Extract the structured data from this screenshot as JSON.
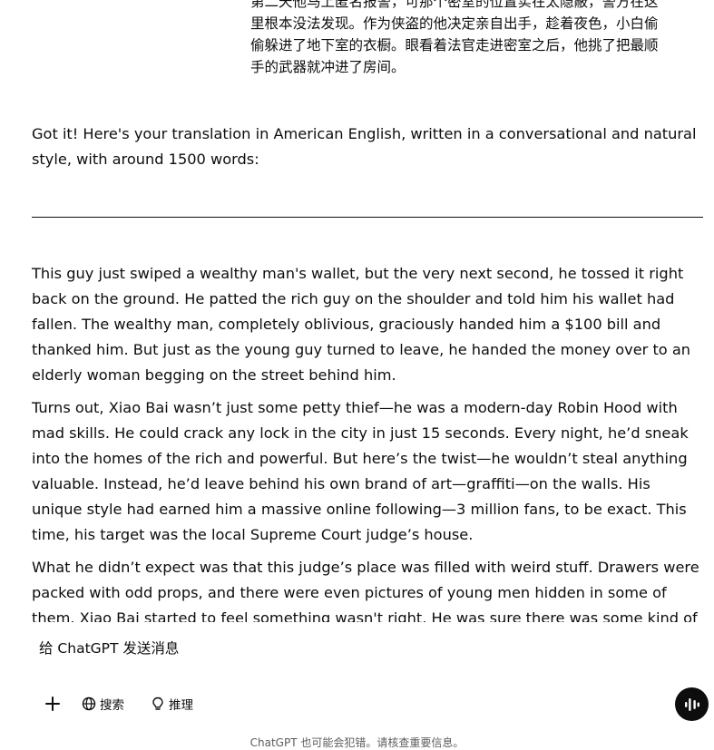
{
  "user_message": {
    "lines": [
      "第二天他马上匿名报警，可那个密室的位置实在太隐蔽，警方在这",
      "里根本没法发现。作为侠盗的他决定亲自出手，趁着夜色，小白偷",
      "偷躲进了地下室的衣橱。眼看着法官走进密室之后，他挑了把最顺",
      "手的武器就冲进了房间。"
    ]
  },
  "assistant_message": {
    "intro": "Got it! Here's your translation in American English, written in a conversational and natural style, with around 1500 words:",
    "paragraphs": [
      "This guy just swiped a wealthy man's wallet, but the very next second, he tossed it right back on the ground. He patted the rich guy on the shoulder and told him his wallet had fallen. The wealthy man, completely oblivious, graciously handed him a $100 bill and thanked him. But just as the young guy turned to leave, he handed the money over to an elderly woman begging on the street behind him.",
      "Turns out, Xiao Bai wasn’t just some petty thief—he was a modern-day Robin Hood with mad skills. He could crack any lock in the city in just 15 seconds. Every night, he’d sneak into the homes of the rich and powerful. But here’s the twist—he wouldn’t steal anything valuable. Instead, he’d leave behind his own brand of art—graffiti—on the walls. His unique style had earned him a massive online following—3 million fans, to be exact. This time, his target was the local Supreme Court judge’s house.",
      "What he didn’t expect was that this judge’s place was filled with weird stuff. Drawers were packed with odd props, and there were even pictures of young men hidden in some of them. Xiao Bai started to feel something wasn't right. He was sure there was some kind of secret"
    ]
  },
  "composer": {
    "placeholder": "给 ChatGPT 发送消息"
  },
  "toolbar": {
    "plus_icon": "plus-icon",
    "search_label": "搜索",
    "search_icon": "globe-icon",
    "reason_label": "推理",
    "reason_icon": "lightbulb-icon",
    "voice_icon": "voice-mode-icon"
  },
  "footer": {
    "disclaimer": "ChatGPT 也可能会犯错。请核查重要信息。"
  }
}
